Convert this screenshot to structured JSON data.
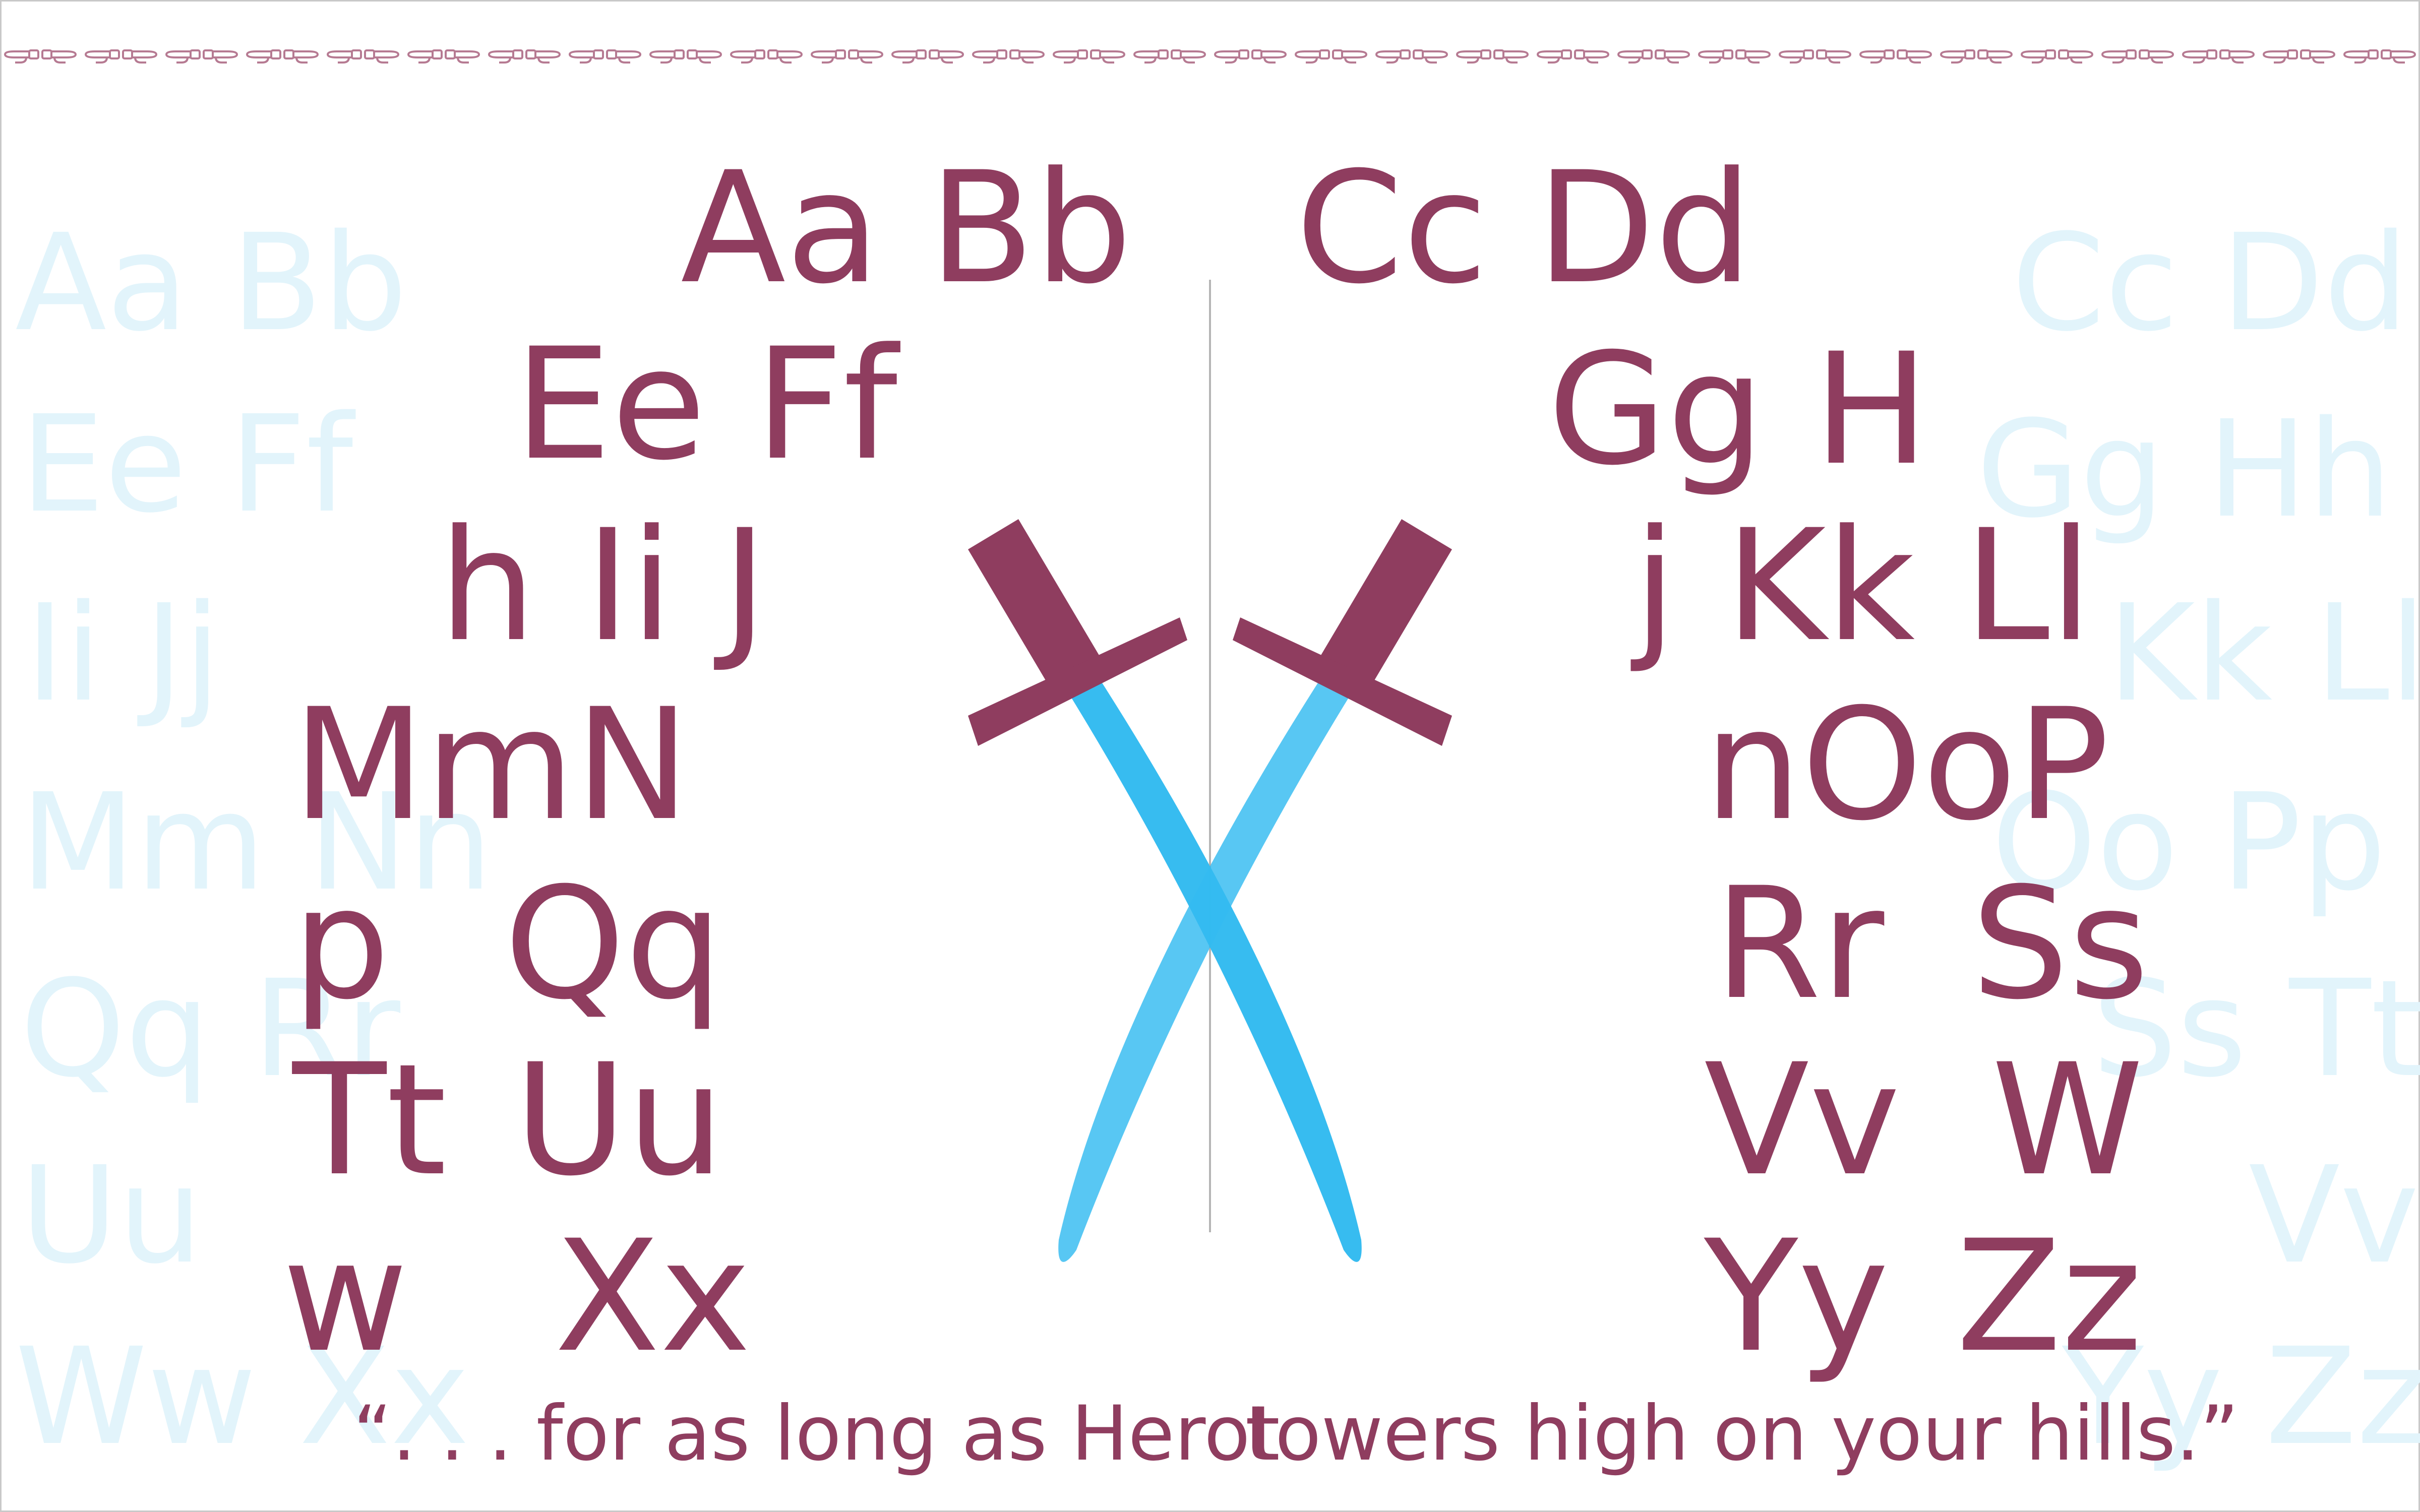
{
  "colors": {
    "letter": "#8f3d5f",
    "ghost": "#e2f4fb",
    "blade": "#33bbf0",
    "hilt": "#8f3d5f",
    "divider": "#b5b5b5",
    "ornament": "#b67a92"
  },
  "ornament": {
    "icon": "pointing-hand-icon",
    "count": 60
  },
  "ghost_letters": {
    "l1": "Aa Bb",
    "l2": "Ee Ff",
    "l3": "Ii Jj",
    "l4": "Mm Nn",
    "l5": "Qq Rr",
    "l6": "Uu",
    "l7": "Ww Xx",
    "r1": "Cc Dd",
    "r2": "Gg Hh",
    "r3": "Kk Ll",
    "r4": "Oo Pp",
    "r5": "Ss Tt",
    "r6": "Vv",
    "r7": "Yy Zz"
  },
  "letters": {
    "aa_bb": "Aa Bb",
    "cc_dd": "Cc Dd",
    "ee_ff": "Ee Ff",
    "gg_h": "Gg H",
    "h_ii_j": "h Ii J",
    "j_kk_ll": "j Kk Ll",
    "mm_n": "MmN",
    "n_oo_p": "nOoP",
    "p": "p",
    "qq": "Qq",
    "rr": "Rr",
    "ss": "Ss",
    "tt": "Tt",
    "uu": "Uu",
    "vv": "Vv",
    "w_cap": "W",
    "w": "w",
    "xx": "Xx",
    "yy": "Yy",
    "zz": "Zz"
  },
  "quote": {
    "left": "“. . . for as long as Herot",
    "right": "towers high on your hills.”"
  },
  "illustration": {
    "icon": "crossed-swords-icon"
  }
}
